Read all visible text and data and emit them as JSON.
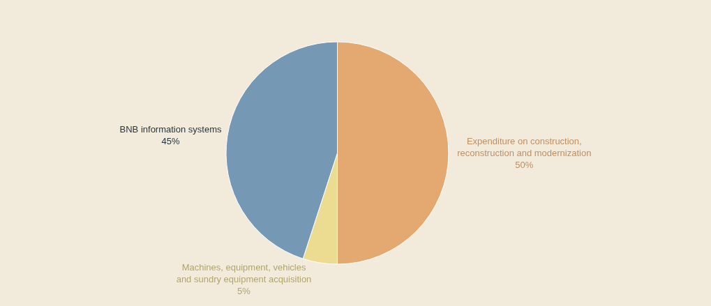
{
  "chart_data": {
    "type": "pie",
    "categories": [
      "Expenditure on construction, reconstruction and modernization",
      "Machines, equipment, vehicles and sundry equipment acquisition",
      "BNB information systems"
    ],
    "values": [
      50,
      5,
      45
    ],
    "value_labels": [
      "50%",
      "5%",
      "45%"
    ],
    "colors": [
      "#e3a971",
      "#ecdc92",
      "#7599b5"
    ]
  }
}
